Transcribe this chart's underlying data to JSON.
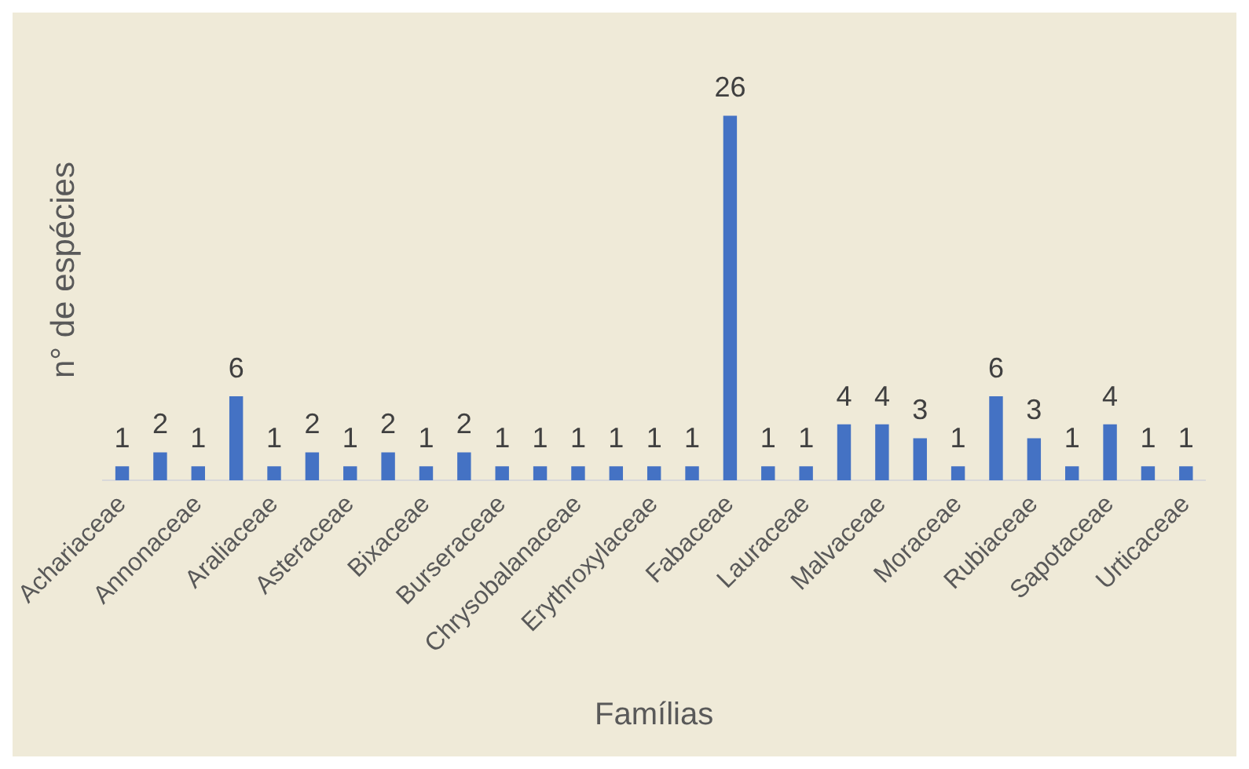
{
  "chart_data": {
    "type": "bar",
    "xlabel": "Famílias",
    "ylabel": "n° de espécies",
    "categories": [
      "Achariaceae",
      null,
      "Annonaceae",
      null,
      "Araliaceae",
      null,
      "Asteraceae",
      null,
      "Bixaceae",
      null,
      "Burseraceae",
      null,
      "Chrysobalanaceae",
      null,
      "Erythroxylaceae",
      null,
      "Fabaceae",
      null,
      "Lauraceae",
      null,
      "Malvaceae",
      null,
      "Moraceae",
      null,
      "Rubiaceae",
      null,
      "Sapotaceae",
      null,
      "Urticaceae"
    ],
    "values": [
      1,
      2,
      1,
      6,
      1,
      2,
      1,
      2,
      1,
      2,
      1,
      1,
      1,
      1,
      1,
      1,
      26,
      1,
      1,
      4,
      4,
      3,
      1,
      6,
      3,
      1,
      4,
      1,
      1
    ],
    "color": "#4472c4",
    "data_labels": true,
    "grid": false,
    "legend": false,
    "tick_labels": "x"
  }
}
